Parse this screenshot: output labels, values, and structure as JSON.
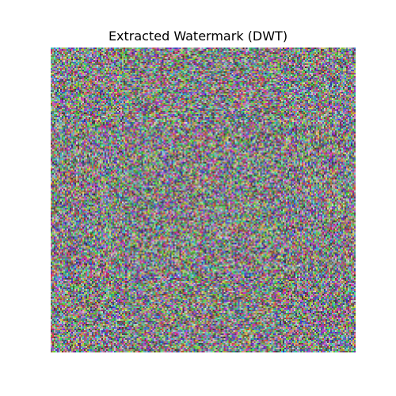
{
  "figure": {
    "title": "Extracted Watermark (DWT)",
    "background_color": "#ffffff",
    "title_color": "#000000"
  },
  "image": {
    "content": "random-color-noise",
    "axes_visible": false,
    "dominant_hues": [
      "#7a6f8f",
      "#5f9f7f",
      "#a06a9a",
      "#4fa0a8",
      "#9a8a5a",
      "#6a5aa8"
    ]
  }
}
